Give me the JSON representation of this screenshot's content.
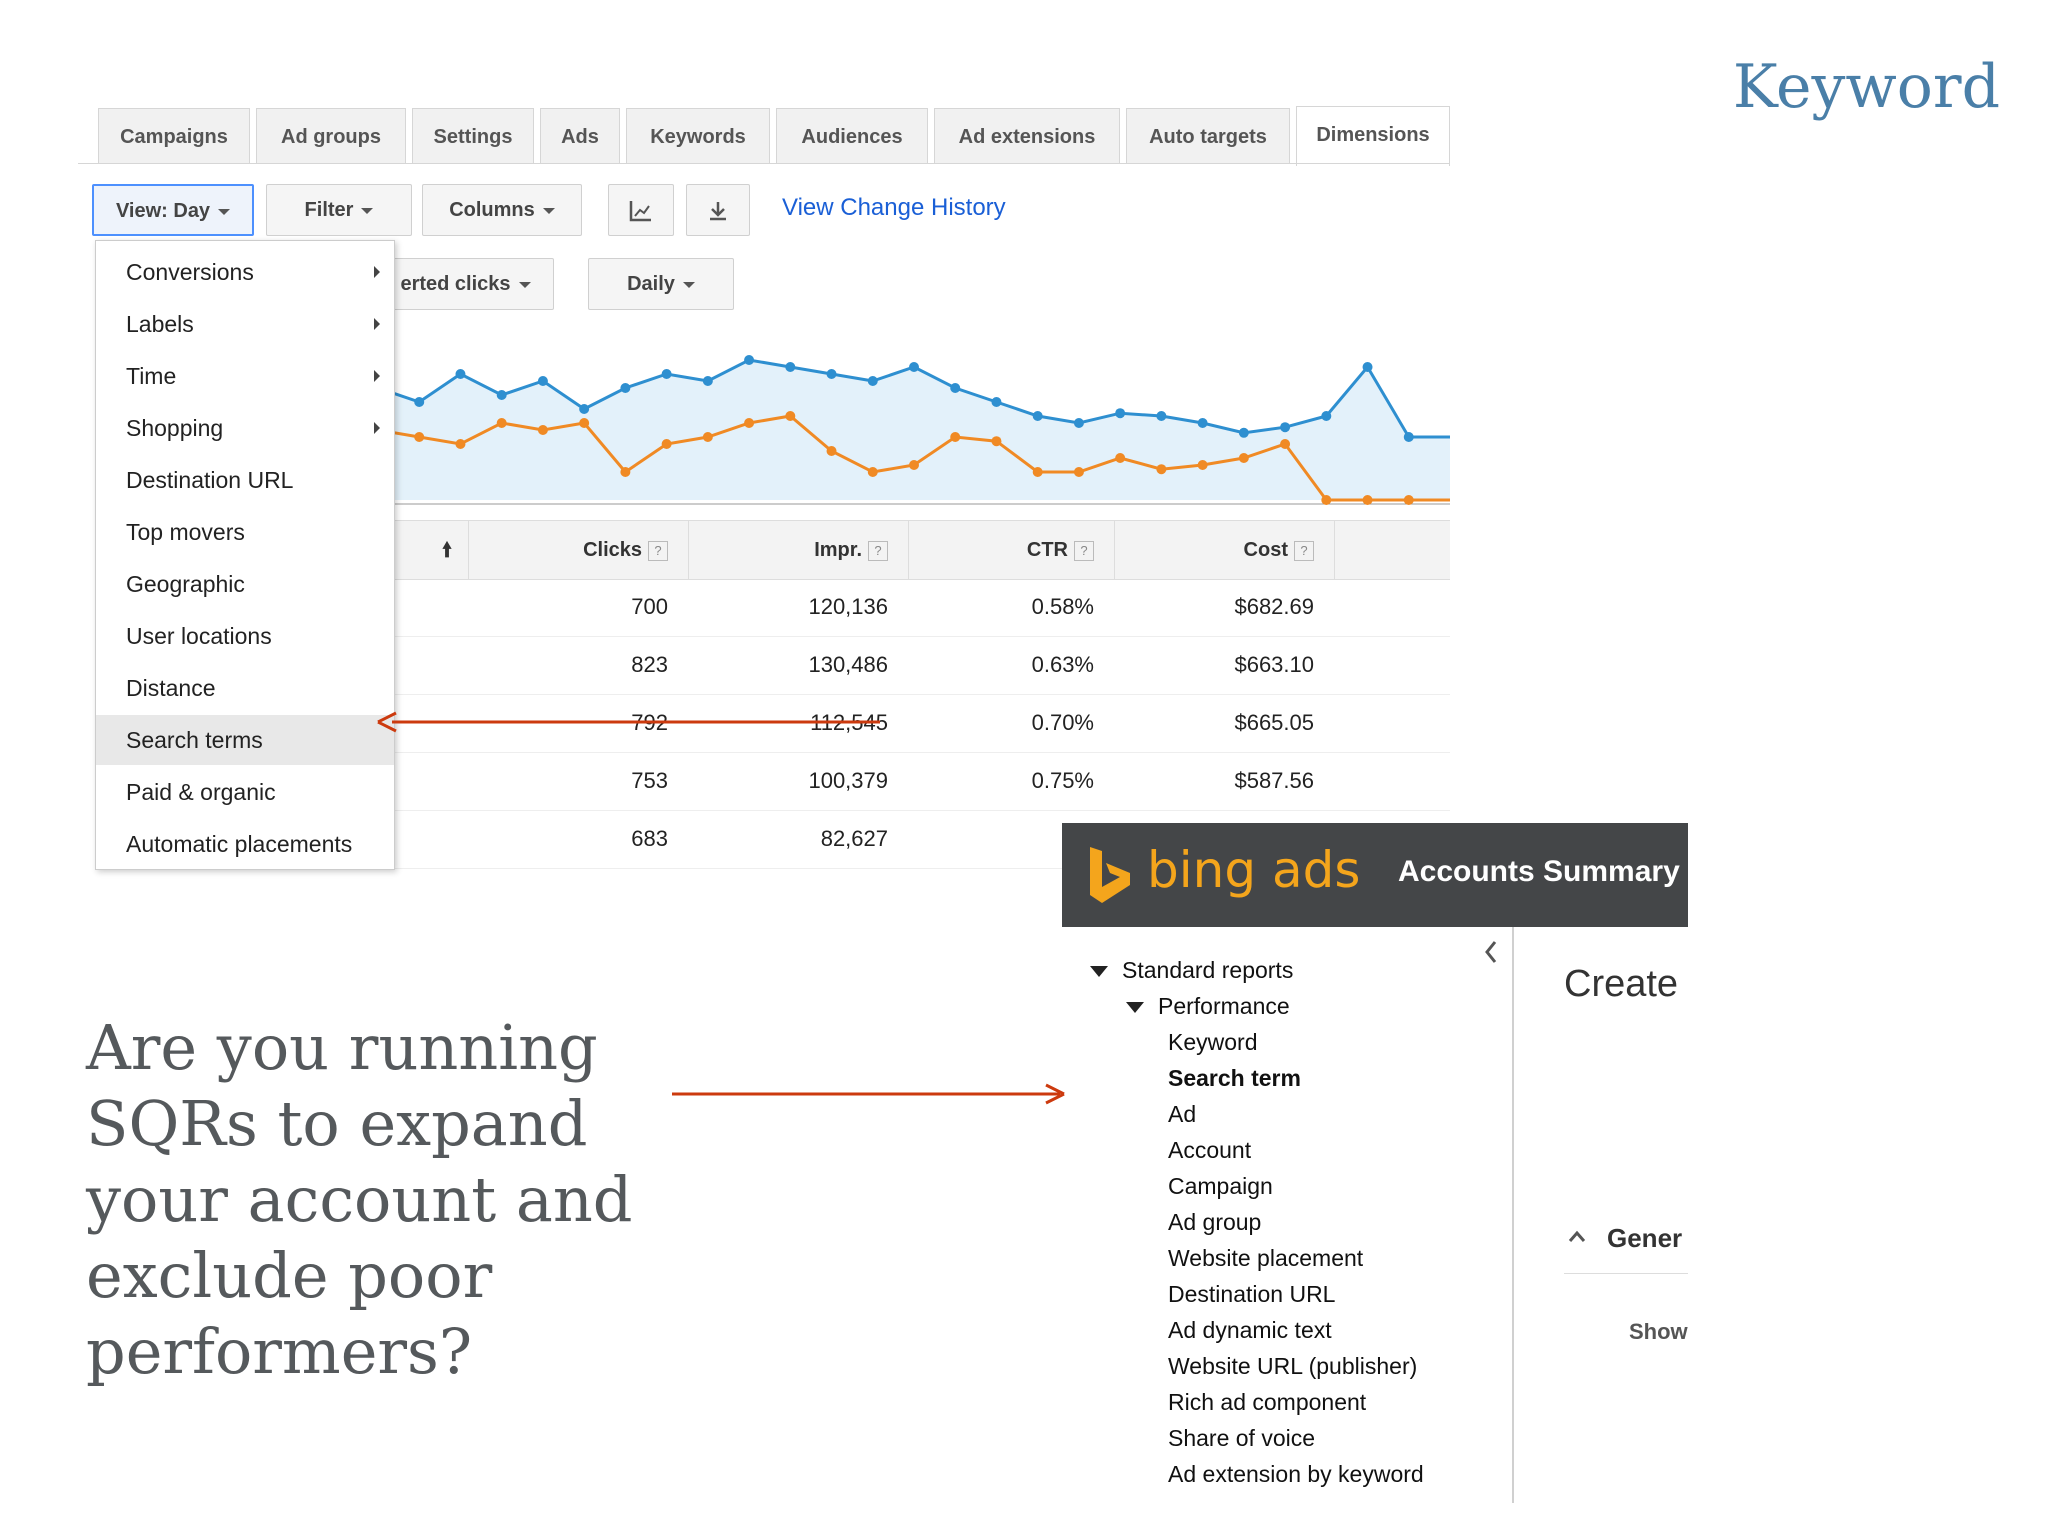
{
  "slide": {
    "title": "Keyword",
    "question": "Are you running SQRs to expand your account and exclude poor performers?"
  },
  "colors": {
    "title": "#4a7fa8",
    "arrow": "#cc3a0e",
    "series_clicks": "#2e8fd0",
    "series_cost": "#f08a24"
  },
  "google_ads": {
    "tabs": [
      {
        "label": "Campaigns"
      },
      {
        "label": "Ad groups"
      },
      {
        "label": "Settings"
      },
      {
        "label": "Ads"
      },
      {
        "label": "Keywords"
      },
      {
        "label": "Audiences"
      },
      {
        "label": "Ad extensions"
      },
      {
        "label": "Auto targets"
      },
      {
        "label": "Dimensions",
        "active": true
      }
    ],
    "toolbar": {
      "view": "View: Day",
      "filter": "Filter",
      "columns": "Columns",
      "chart_icon": "line-chart-icon",
      "download_icon": "download-icon",
      "change_history": "View Change History",
      "metric_partial": "erted clicks",
      "daily": "Daily"
    },
    "menu": {
      "items": [
        {
          "label": "Conversions",
          "submenu": true
        },
        {
          "label": "Labels",
          "submenu": true
        },
        {
          "label": "Time",
          "submenu": true
        },
        {
          "label": "Shopping",
          "submenu": true
        },
        {
          "label": "Destination URL"
        },
        {
          "label": "Top movers"
        },
        {
          "label": "Geographic"
        },
        {
          "label": "User locations"
        },
        {
          "label": "Distance"
        },
        {
          "label": "Search terms",
          "highlighted": true
        },
        {
          "label": "Paid & organic"
        },
        {
          "label": "Automatic placements"
        }
      ]
    },
    "table": {
      "sort_icon": "sort-up-arrow-icon",
      "help_mark": "?",
      "headers": [
        "Clicks",
        "Impr.",
        "CTR",
        "Cost"
      ],
      "rows": [
        [
          "700",
          "120,136",
          "0.58%",
          "$682.69"
        ],
        [
          "823",
          "130,486",
          "0.63%",
          "$663.10"
        ],
        [
          "792",
          "112,545",
          "0.70%",
          "$665.05"
        ],
        [
          "753",
          "100,379",
          "0.75%",
          "$587.56"
        ],
        [
          "683",
          "82,627",
          "",
          ""
        ]
      ]
    }
  },
  "chart_data": {
    "type": "line",
    "title": "",
    "xlabel": "",
    "ylabel": "",
    "grid": true,
    "x": [
      1,
      2,
      3,
      4,
      5,
      6,
      7,
      8,
      9,
      10,
      11,
      12,
      13,
      14,
      15,
      16,
      17,
      18,
      19,
      20,
      21,
      22,
      23,
      24,
      25,
      26,
      27
    ],
    "series": [
      {
        "values": [
          0.8,
          0.7,
          0.9,
          0.75,
          0.85,
          0.65,
          0.8,
          0.9,
          0.85,
          1.0,
          0.95,
          0.9,
          0.85,
          0.95,
          0.8,
          0.7,
          0.6,
          0.55,
          0.62,
          0.6,
          0.55,
          0.48,
          0.52,
          0.6,
          0.95,
          0.45,
          0.45
        ]
      },
      {
        "values": [
          0.5,
          0.45,
          0.4,
          0.55,
          0.5,
          0.55,
          0.2,
          0.4,
          0.45,
          0.55,
          0.6,
          0.35,
          0.2,
          0.25,
          0.45,
          0.42,
          0.2,
          0.2,
          0.3,
          0.22,
          0.25,
          0.3,
          0.4,
          0.0,
          0.0,
          0.0,
          0.0
        ]
      }
    ]
  },
  "bing_ads": {
    "logo": "bing ads",
    "header_title": "Accounts Summary",
    "collapse_icon": "chevron-left-icon",
    "tree": {
      "root": "Standard reports",
      "group": "Performance",
      "items": [
        {
          "label": "Keyword"
        },
        {
          "label": "Search term",
          "bold": true
        },
        {
          "label": "Ad"
        },
        {
          "label": "Account"
        },
        {
          "label": "Campaign"
        },
        {
          "label": "Ad group"
        },
        {
          "label": "Website placement"
        },
        {
          "label": "Destination URL"
        },
        {
          "label": "Ad dynamic text"
        },
        {
          "label": "Website URL (publisher)"
        },
        {
          "label": "Rich ad component"
        },
        {
          "label": "Share of voice"
        },
        {
          "label": "Ad extension by keyword"
        }
      ]
    },
    "create": "Create",
    "gener": "Gener",
    "show": "Show"
  }
}
